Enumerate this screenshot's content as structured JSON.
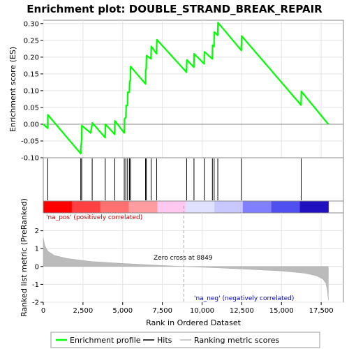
{
  "chart_data": {
    "type": "line",
    "title": "Enrichment plot: DOUBLE_STRAND_BREAK_REPAIR",
    "es_panel": {
      "ylabel": "Enrichment score (ES)",
      "ylim": [
        -0.1,
        0.31
      ],
      "yticks": [
        -0.1,
        -0.05,
        0.0,
        0.05,
        0.1,
        0.15,
        0.2,
        0.25,
        0.3
      ],
      "ytick_labels": [
        "-0.10",
        "-0.05",
        "0.00",
        "0.05",
        "0.10",
        "0.15",
        "0.20",
        "0.25",
        "0.30"
      ],
      "series": [
        {
          "name": "Enrichment profile",
          "x": [
            0,
            280,
            285,
            2360,
            2365,
            2420,
            2425,
            2980,
            3080,
            3090,
            3900,
            3910,
            4490,
            4510,
            5100,
            5110,
            5200,
            5220,
            5300,
            5320,
            5420,
            5440,
            5480,
            5500,
            6440,
            6450,
            6480,
            6500,
            6780,
            6800,
            7130,
            7150,
            9020,
            9040,
            9480,
            9500,
            10130,
            10150,
            10640,
            10660,
            10750,
            10770,
            10980,
            11000,
            12470,
            12490,
            16230,
            16250,
            17950
          ],
          "y": [
            0.0,
            -0.012,
            0.028,
            -0.088,
            -0.068,
            -0.046,
            -0.004,
            -0.026,
            0.0,
            0.004,
            -0.04,
            0.0,
            -0.03,
            0.01,
            -0.026,
            0.016,
            0.02,
            0.056,
            0.055,
            0.095,
            0.095,
            0.128,
            0.13,
            0.172,
            0.12,
            0.162,
            0.165,
            0.205,
            0.195,
            0.232,
            0.21,
            0.252,
            0.155,
            0.192,
            0.17,
            0.21,
            0.18,
            0.216,
            0.195,
            0.236,
            0.232,
            0.275,
            0.265,
            0.303,
            0.22,
            0.263,
            0.057,
            0.098,
            0.0
          ]
        }
      ]
    },
    "hits": [
      280,
      2360,
      2420,
      3080,
      3900,
      4500,
      5100,
      5200,
      5310,
      5430,
      5490,
      6440,
      6490,
      6790,
      7140,
      9030,
      9490,
      10140,
      10650,
      10760,
      10990,
      12480,
      16240
    ],
    "ranking_panel": {
      "ylabel": "Ranked list metric (PreRanked)",
      "ylim": [
        -2,
        3
      ],
      "yticks": [
        -2,
        -1,
        0,
        1,
        2
      ],
      "ytick_labels": [
        "-2",
        "-1",
        "0",
        "1",
        "2"
      ],
      "series": [
        {
          "name": "Ranking metric scores",
          "x": [
            0,
            100,
            300,
            700,
            1500,
            3000,
            5000,
            7000,
            8849,
            11000,
            13000,
            15000,
            16500,
            17200,
            17600,
            17800,
            17900,
            17950
          ],
          "y": [
            1.6,
            1.15,
            0.85,
            0.62,
            0.45,
            0.28,
            0.17,
            0.08,
            0.0,
            -0.08,
            -0.16,
            -0.25,
            -0.38,
            -0.52,
            -0.7,
            -0.95,
            -1.4,
            -1.9
          ]
        }
      ]
    },
    "x_axis": {
      "xlabel": "Rank in Ordered Dataset",
      "xlim": [
        0,
        18900
      ],
      "xticks": [
        0,
        2500,
        5000,
        7500,
        10000,
        12500,
        15000,
        17500
      ],
      "xtick_labels": [
        "0",
        "2,500",
        "5,000",
        "7,500",
        "10,000",
        "12,500",
        "15,000",
        "17,500"
      ],
      "data_max": 17950
    },
    "zero_cross": 8849,
    "annotations": {
      "pos_label": "'na_pos' (positively correlated)",
      "neg_label": "'na_neg' (negatively correlated)",
      "zero_label": "Zero cross at 8849"
    },
    "heat_bar_colors": [
      "#ff0000",
      "#ff4040",
      "#ff7070",
      "#ff9ca0",
      "#ffc8f0",
      "#e0e0ff",
      "#c8c8ff",
      "#8080ff",
      "#5050f0",
      "#2010c0"
    ],
    "legend": {
      "items": [
        {
          "label": "Enrichment profile",
          "color": "#00ff00"
        },
        {
          "label": "Hits",
          "color": "#000000"
        },
        {
          "label": "Ranking metric scores",
          "color": "#bbbbbb"
        }
      ]
    },
    "grid": true
  }
}
